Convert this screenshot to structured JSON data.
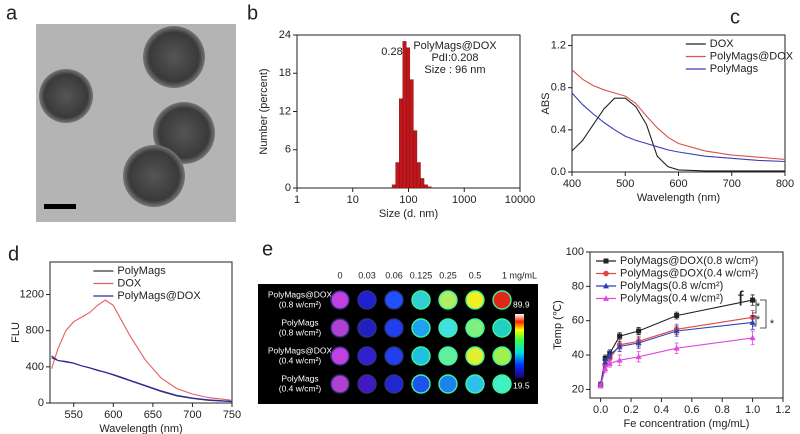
{
  "panel_a": {
    "label": "a"
  },
  "chart_data": [
    {
      "type": "histogram",
      "label": "b",
      "x_label": "Size (d. nm)",
      "y_label": "Number (percent)",
      "bins": [
        50.7,
        58.8,
        68.1,
        78.8,
        91.3,
        105.7,
        122.4,
        141.8,
        164.2,
        190.1,
        220.2,
        255
      ],
      "values": [
        0.5,
        4,
        14,
        23,
        22,
        17,
        9,
        4,
        1.5,
        0.5,
        0.2
      ],
      "color": "#c0171c",
      "xlim": [
        1,
        10000
      ],
      "xticks": [
        1,
        10,
        100,
        1000,
        10000
      ],
      "xscale": "log",
      "ylim": [
        0,
        24
      ],
      "yticks": [
        0,
        6,
        12,
        18,
        24
      ],
      "annotations": [
        "PolyMags@DOX",
        "PdI:0.208",
        "Size : 96 nm",
        "0.28"
      ]
    },
    {
      "type": "line",
      "label": "c",
      "x_label": "Wavelength (nm)",
      "y_label": "ABS",
      "legend": "upper right",
      "x": [
        400,
        420,
        440,
        460,
        480,
        500,
        520,
        540,
        560,
        580,
        600,
        650,
        700,
        750,
        800
      ],
      "series": [
        {
          "name": "DOX",
          "color": "#222222",
          "values": [
            0.2,
            0.3,
            0.45,
            0.6,
            0.7,
            0.7,
            0.62,
            0.45,
            0.15,
            0.05,
            0.02,
            0.01,
            0.01,
            0.01,
            0.01
          ]
        },
        {
          "name": "PolyMags@DOX",
          "color": "#d9534f",
          "values": [
            0.97,
            0.88,
            0.82,
            0.78,
            0.75,
            0.72,
            0.65,
            0.53,
            0.42,
            0.33,
            0.27,
            0.2,
            0.16,
            0.14,
            0.12
          ]
        },
        {
          "name": "PolyMags",
          "color": "#3b3bb8",
          "values": [
            0.75,
            0.64,
            0.55,
            0.47,
            0.4,
            0.34,
            0.3,
            0.27,
            0.24,
            0.21,
            0.19,
            0.15,
            0.13,
            0.11,
            0.1
          ]
        }
      ],
      "xlim": [
        400,
        800
      ],
      "xticks": [
        400,
        500,
        600,
        700,
        800
      ],
      "ylim": [
        0,
        1.3
      ],
      "yticks": [
        {
          "value": 0,
          "label": "0.0"
        },
        0.4,
        0.8,
        1.2
      ]
    },
    {
      "type": "line",
      "label": "d",
      "x_label": "Wavelength (nm)",
      "y_label": "FLU",
      "legend": "upper center",
      "x": [
        522,
        530,
        540,
        550,
        560,
        570,
        580,
        590,
        600,
        610,
        620,
        640,
        660,
        680,
        700,
        720,
        750
      ],
      "series": [
        {
          "name": "PolyMags",
          "color": "#333344",
          "values": [
            520,
            470,
            460,
            440,
            410,
            390,
            360,
            340,
            310,
            280,
            250,
            190,
            130,
            80,
            50,
            30,
            15
          ]
        },
        {
          "name": "DOX",
          "color": "#e06060",
          "values": [
            380,
            600,
            800,
            900,
            950,
            1000,
            1080,
            1140,
            1080,
            920,
            760,
            480,
            280,
            160,
            100,
            60,
            30
          ]
        },
        {
          "name": "PolyMags@DOX",
          "color": "#2a2aa8",
          "values": [
            500,
            470,
            455,
            440,
            410,
            390,
            365,
            340,
            315,
            285,
            255,
            195,
            135,
            85,
            55,
            35,
            18
          ]
        }
      ],
      "xlim": [
        520,
        750
      ],
      "xticks": [
        550,
        600,
        650,
        700,
        750
      ],
      "ylim": [
        0,
        1560
      ],
      "yticks": [
        0,
        400,
        800,
        1200
      ]
    },
    {
      "type": "errorline",
      "label": "f",
      "x_label": "Fe concentration (mg/mL)",
      "y_label": "Temp (℃)",
      "legend": "upper left",
      "x": [
        0,
        0.03,
        0.06,
        0.125,
        0.25,
        0.5,
        1
      ],
      "series": [
        {
          "name": "PolyMags@DOX(0.8 w/cm²)",
          "color": "#222222",
          "values": [
            23,
            38,
            41,
            51,
            54,
            63,
            72
          ],
          "errors": [
            1,
            2,
            2,
            2,
            2,
            2,
            3
          ]
        },
        {
          "name": "PolyMags@DOX(0.4 w/cm²)",
          "color": "#e04848",
          "values": [
            23,
            34,
            38,
            46,
            48,
            55,
            62
          ],
          "errors": [
            1,
            2,
            2,
            3,
            3,
            3,
            4
          ]
        },
        {
          "name": "PolyMags(0.8 w/cm²)",
          "color": "#2f3fb8",
          "values": [
            23,
            36,
            40,
            45,
            47,
            54,
            59
          ],
          "errors": [
            1,
            2,
            2,
            3,
            3,
            3,
            4
          ]
        },
        {
          "name": "PolyMags(0.4 w/cm²)",
          "color": "#e048e0",
          "values": [
            22,
            32,
            35,
            37,
            39,
            44,
            50
          ],
          "errors": [
            1,
            2,
            2,
            3,
            3,
            3,
            4
          ]
        }
      ],
      "xlim": [
        -0.07,
        1.2
      ],
      "xticks": [
        {
          "value": 0,
          "label": "0.0"
        },
        0.2,
        0.4,
        0.6,
        0.8,
        {
          "value": 1,
          "label": "1.0"
        },
        1.2
      ],
      "ylim": [
        15,
        100
      ],
      "yticks": [
        20,
        40,
        60,
        80,
        100
      ],
      "annotations": [
        "*",
        "*",
        "*"
      ]
    }
  ],
  "panel_e": {
    "label": "e",
    "columns": [
      "0",
      "0.03",
      "0.06",
      "0.125",
      "0.25",
      "0.5",
      "1 mg/mL"
    ],
    "rows": [
      [
        "PolyMags@DOX",
        "(0.8 w/cm²)"
      ],
      [
        "PolyMags",
        "(0.8 w/cm²)"
      ],
      [
        "PolyMags@DOX",
        "(0.4 w/cm²)"
      ],
      [
        "PolyMags",
        "(0.4 w/cm²)"
      ]
    ],
    "colorbar": [
      "89.9",
      "19.5"
    ]
  }
}
